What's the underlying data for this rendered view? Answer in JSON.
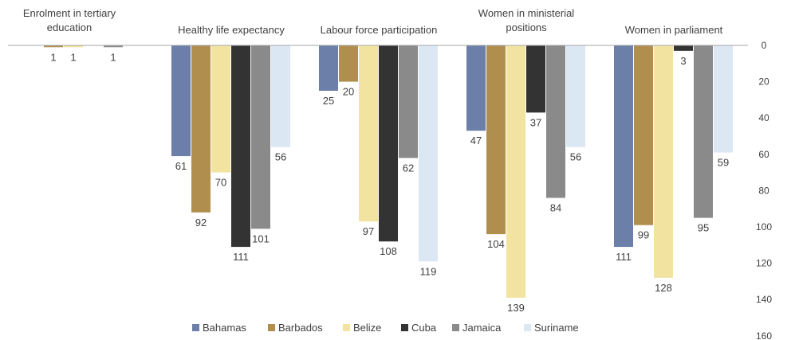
{
  "chart_data": {
    "type": "bar",
    "orientation": "vertical-inverted",
    "title": "",
    "xlabel": "",
    "ylabel": "",
    "ylim": [
      0,
      160
    ],
    "y_ticks": [
      0,
      20,
      40,
      60,
      80,
      100,
      120,
      140,
      160
    ],
    "y_axis_position": "right",
    "grid": false,
    "legend_position": "bottom",
    "categories": [
      [
        "Enrolment in tertiary",
        "education"
      ],
      [
        "Healthy life expectancy"
      ],
      [
        "Labour force participation"
      ],
      [
        "Women in ministerial",
        "positions"
      ],
      [
        "Women in parliament"
      ]
    ],
    "series": [
      {
        "name": "Bahamas",
        "color": "#6b7fa8",
        "values": [
          null,
          61,
          25,
          47,
          111
        ]
      },
      {
        "name": "Barbados",
        "color": "#b08f4e",
        "values": [
          1,
          92,
          20,
          104,
          99
        ]
      },
      {
        "name": "Belize",
        "color": "#f2e3a0",
        "values": [
          1,
          70,
          97,
          139,
          128
        ]
      },
      {
        "name": "Cuba",
        "color": "#333333",
        "values": [
          null,
          111,
          108,
          37,
          3
        ]
      },
      {
        "name": "Jamaica",
        "color": "#8a8a8a",
        "values": [
          1,
          101,
          62,
          84,
          95
        ]
      },
      {
        "name": "Suriname",
        "color": "#dce7f4",
        "values": [
          null,
          56,
          119,
          56,
          59
        ]
      }
    ]
  }
}
